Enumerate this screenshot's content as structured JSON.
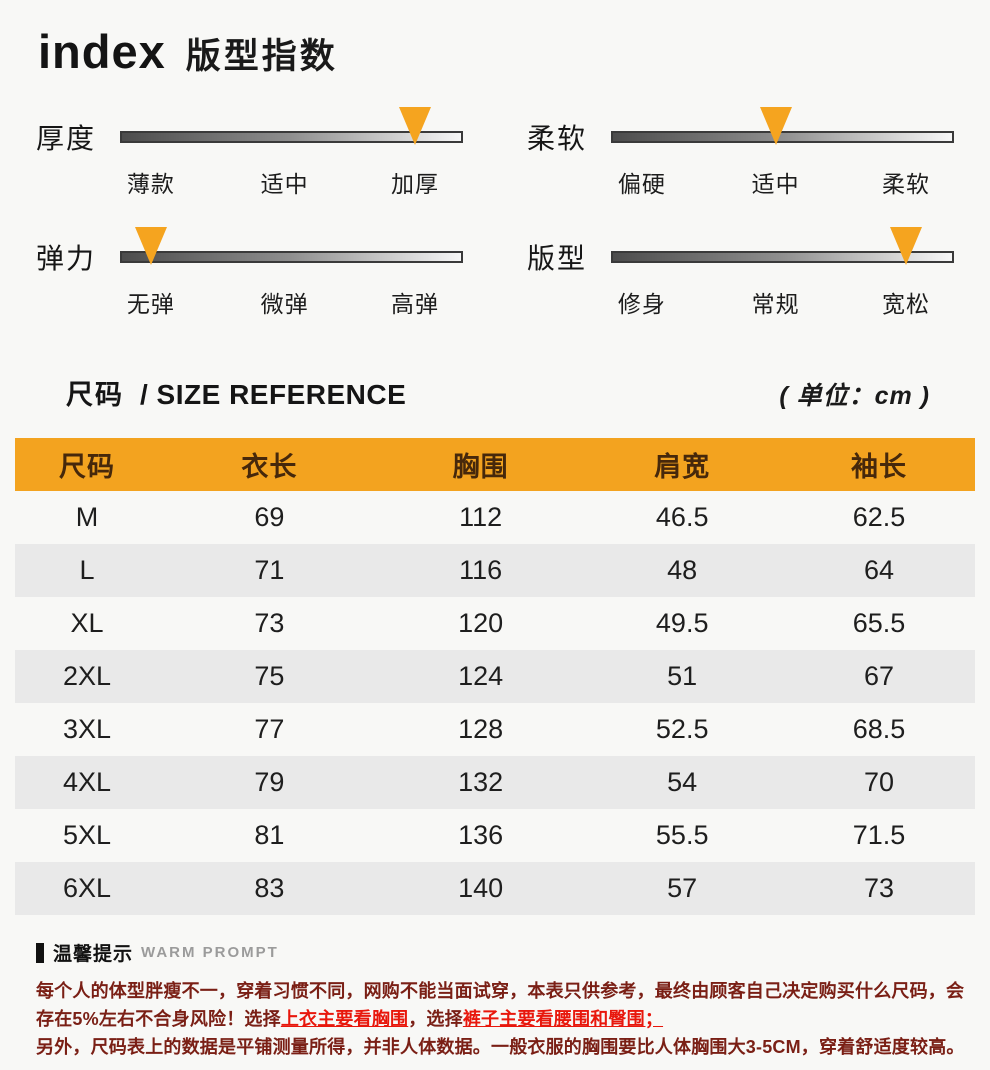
{
  "colors": {
    "accent": "#f5a41f",
    "table_header_bg": "#f3a31f",
    "table_header_text": "#46280b",
    "row_stripe": "#e9e9e9",
    "warn_text": "#7a1f15",
    "warn_highlight": "#e8170c",
    "page_bg": "#f8f8f6"
  },
  "index_section": {
    "title_en": "index",
    "title_zh": "版型指数",
    "level_positions_pct": [
      9,
      48,
      86
    ],
    "sliders": [
      {
        "name": "厚度",
        "levels": [
          "薄款",
          "适中",
          "加厚"
        ],
        "active": 2
      },
      {
        "name": "柔软",
        "levels": [
          "偏硬",
          "适中",
          "柔软"
        ],
        "active": 1
      },
      {
        "name": "弹力",
        "levels": [
          "无弹",
          "微弹",
          "高弹"
        ],
        "active": 0
      },
      {
        "name": "版型",
        "levels": [
          "修身",
          "常规",
          "宽松"
        ],
        "active": 2
      }
    ]
  },
  "size_section": {
    "title_zh": "尺码",
    "title_en": "/ SIZE REFERENCE",
    "unit": "( 单位：cm )"
  },
  "chart_data": {
    "type": "table",
    "columns": [
      "尺码",
      "衣长",
      "胸围",
      "肩宽",
      "袖长"
    ],
    "rows": [
      [
        "M",
        "69",
        "112",
        "46.5",
        "62.5"
      ],
      [
        "L",
        "71",
        "116",
        "48",
        "64"
      ],
      [
        "XL",
        "73",
        "120",
        "49.5",
        "65.5"
      ],
      [
        "2XL",
        "75",
        "124",
        "51",
        "67"
      ],
      [
        "3XL",
        "77",
        "128",
        "52.5",
        "68.5"
      ],
      [
        "4XL",
        "79",
        "132",
        "54",
        "70"
      ],
      [
        "5XL",
        "81",
        "136",
        "55.5",
        "71.5"
      ],
      [
        "6XL",
        "83",
        "140",
        "57",
        "73"
      ]
    ]
  },
  "warm_prompt": {
    "title_zh": "温馨提示",
    "title_en": "WARM PROMPT",
    "line1": "每个人的体型胖瘦不一，穿着习惯不同，网购不能当面试穿，本表只供参考，最终由顾客自己决定购买什么尺码，会",
    "line2_parts": [
      {
        "text": "存在5%左右不合身风险！选择",
        "highlight": false
      },
      {
        "text": "上衣主要看胸围",
        "highlight": true
      },
      {
        "text": "，选择",
        "highlight": false
      },
      {
        "text": "裤子主要看腰围和臀围；",
        "highlight": true
      }
    ],
    "line3": "另外，尺码表上的数据是平铺测量所得，并非人体数据。一般衣服的胸围要比人体胸围大3-5CM，穿着舒适度较高。"
  }
}
